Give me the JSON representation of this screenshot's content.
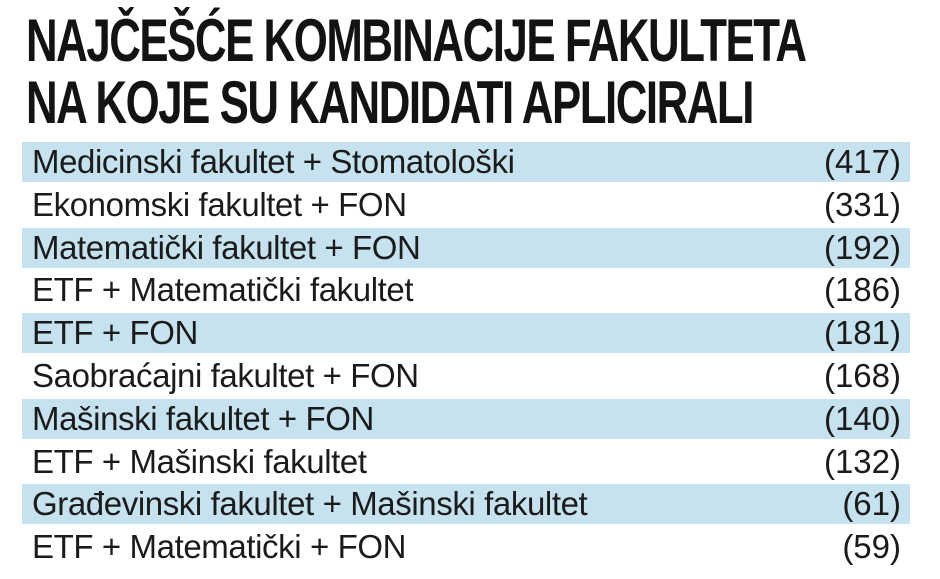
{
  "title": {
    "line1": "NAJČEŠĆE KOMBINACIJE FAKULTETA",
    "line2": "NA KOJE SU KANDIDATI APLICIRALI"
  },
  "table": {
    "rows": [
      {
        "label": "Medicinski fakultet + Stomatološki",
        "value": "(417)",
        "highlighted": true
      },
      {
        "label": "Ekonomski fakultet + FON",
        "value": "(331)",
        "highlighted": false
      },
      {
        "label": "Matematički fakultet + FON",
        "value": "(192)",
        "highlighted": true
      },
      {
        "label": "ETF + Matematički fakultet",
        "value": "(186)",
        "highlighted": false
      },
      {
        "label": "ETF + FON",
        "value": "(181)",
        "highlighted": true
      },
      {
        "label": "Saobraćajni fakultet + FON",
        "value": "(168)",
        "highlighted": false
      },
      {
        "label": "Mašinski fakultet + FON",
        "value": "(140)",
        "highlighted": true
      },
      {
        "label": "ETF + Mašinski fakultet",
        "value": "(132)",
        "highlighted": false
      },
      {
        "label": "Građevinski fakultet + Mašinski fakultet",
        "value": "(61)",
        "highlighted": true
      },
      {
        "label": "ETF + Matematički + FON",
        "value": "(59)",
        "highlighted": false
      }
    ]
  },
  "colors": {
    "highlight_row": "#c5e2ee",
    "row_text": "#1b1b1b",
    "title_text": "#131313",
    "background": "#ffffff"
  },
  "chart_data": {
    "type": "table",
    "title": "NAJČEŠĆE KOMBINACIJE FAKULTETA NA KOJE SU KANDIDATI APLICIRALI",
    "categories": [
      "Medicinski fakultet + Stomatološki",
      "Ekonomski fakultet + FON",
      "Matematički fakultet + FON",
      "ETF + Matematički fakultet",
      "ETF + FON",
      "Saobraćajni fakultet + FON",
      "Mašinski fakultet + FON",
      "ETF + Mašinski fakultet",
      "Građevinski fakultet + Mašinski fakultet",
      "ETF + Matematički + FON"
    ],
    "values": [
      417,
      331,
      192,
      186,
      181,
      168,
      140,
      132,
      61,
      59
    ],
    "layout_hints": "rows sorted descending, alternating pale-blue highlight starting with first row, counts right-aligned in parentheses"
  }
}
